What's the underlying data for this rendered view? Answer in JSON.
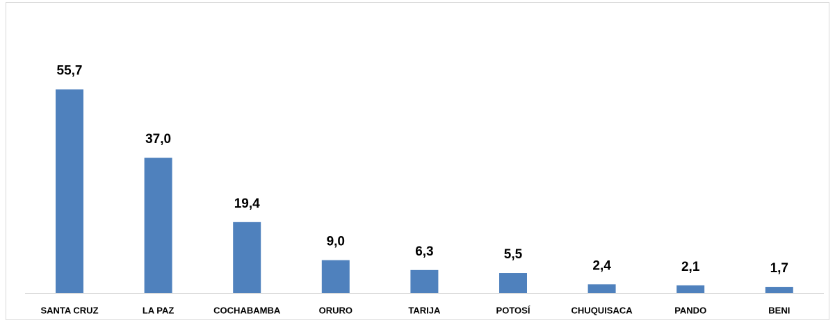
{
  "chart_data": {
    "type": "bar",
    "categories": [
      "SANTA CRUZ",
      "LA PAZ",
      "COCHABAMBA",
      "ORURO",
      "TARIJA",
      "POTOSÍ",
      "CHUQUISACA",
      "PANDO",
      "BENI"
    ],
    "values": [
      55.7,
      37.0,
      19.4,
      9.0,
      6.3,
      5.5,
      2.4,
      2.1,
      1.7
    ],
    "value_labels": [
      "55,7",
      "37,0",
      "19,4",
      "9,0",
      "6,3",
      "5,5",
      "2,4",
      "2,1",
      "1,7"
    ],
    "color": "#4f81bd",
    "ylim": [
      0,
      60
    ]
  }
}
